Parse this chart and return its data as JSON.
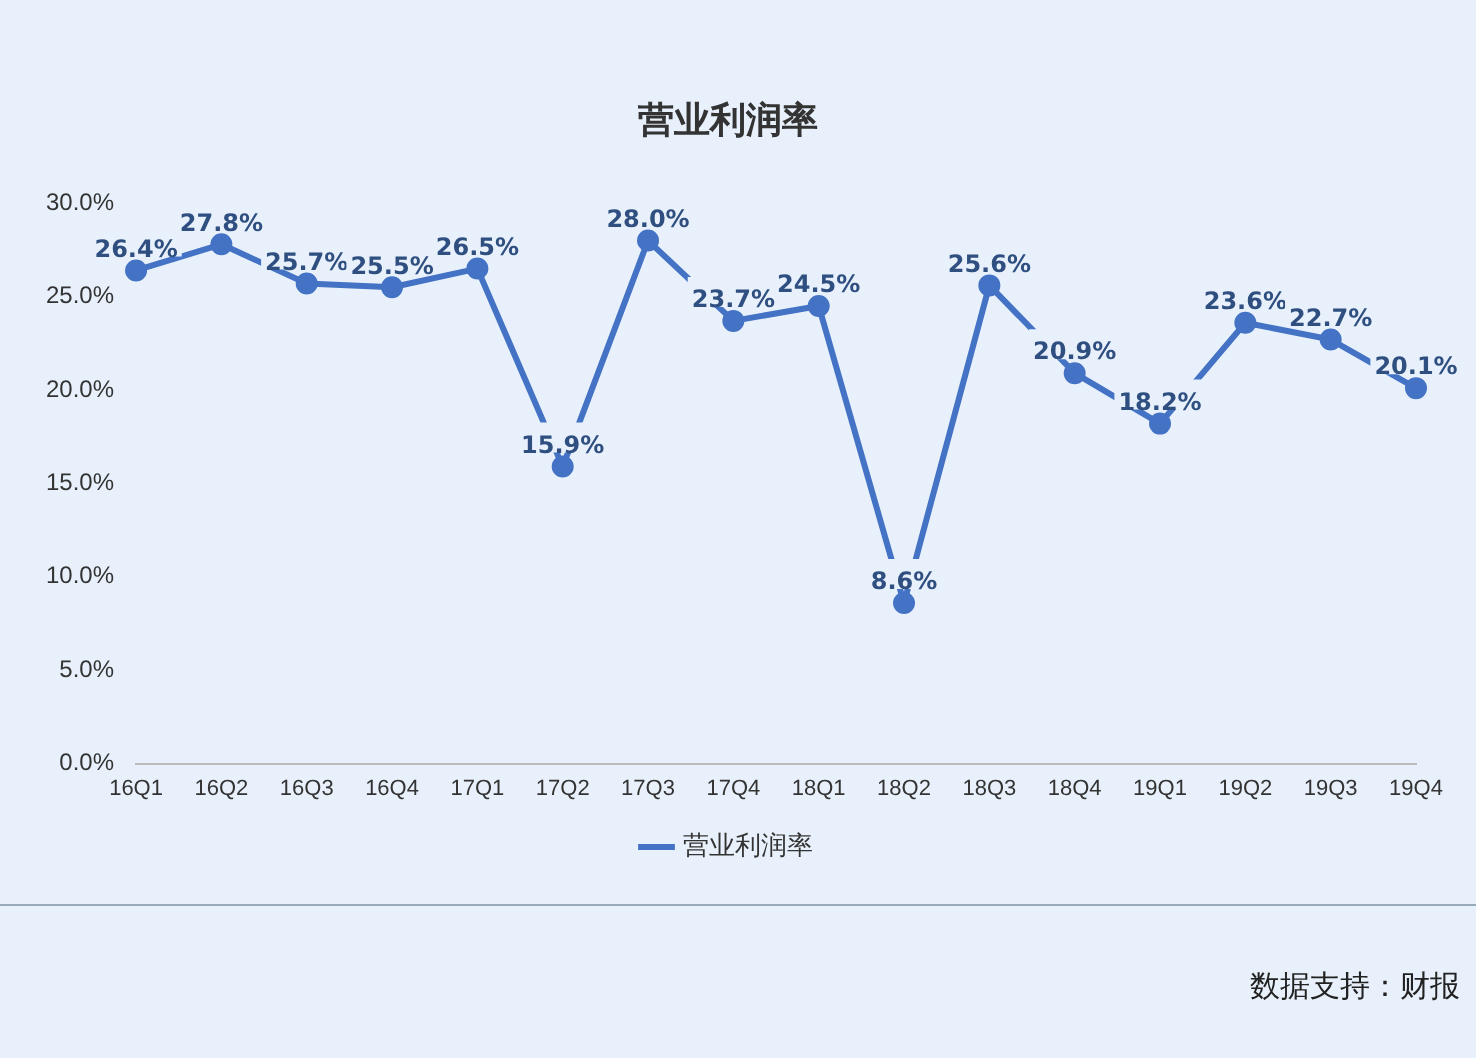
{
  "chart_data": {
    "type": "line",
    "title": "营业利润率",
    "categories": [
      "16Q1",
      "16Q2",
      "16Q3",
      "16Q4",
      "17Q1",
      "17Q2",
      "17Q3",
      "17Q4",
      "18Q1",
      "18Q2",
      "18Q3",
      "18Q4",
      "19Q1",
      "19Q2",
      "19Q3",
      "19Q4"
    ],
    "series": [
      {
        "name": "营业利润率",
        "color": "#4472c4",
        "values": [
          26.4,
          27.8,
          25.7,
          25.5,
          26.5,
          15.9,
          28.0,
          23.7,
          24.5,
          8.6,
          25.6,
          20.9,
          18.2,
          23.6,
          22.7,
          20.1
        ],
        "value_labels": [
          "26.4%",
          "27.8%",
          "25.7%",
          "25.5%",
          "26.5%",
          "15.9%",
          "28.0%",
          "23.7%",
          "24.5%",
          "8.6%",
          "25.6%",
          "20.9%",
          "18.2%",
          "23.6%",
          "22.7%",
          "20.1%"
        ]
      }
    ],
    "ylim": [
      0,
      30
    ],
    "yticks": [
      {
        "value": 0,
        "label": "0.0%"
      },
      {
        "value": 5,
        "label": "5.0%"
      },
      {
        "value": 10,
        "label": "10.0%"
      },
      {
        "value": 15,
        "label": "15.0%"
      },
      {
        "value": 20,
        "label": "20.0%"
      },
      {
        "value": 25,
        "label": "25.0%"
      },
      {
        "value": 30,
        "label": "30.0%"
      }
    ],
    "grid": false,
    "legend": "bottom",
    "marker": "circle",
    "line_style": "solid",
    "annotations": [
      "数据支持：财报"
    ]
  }
}
